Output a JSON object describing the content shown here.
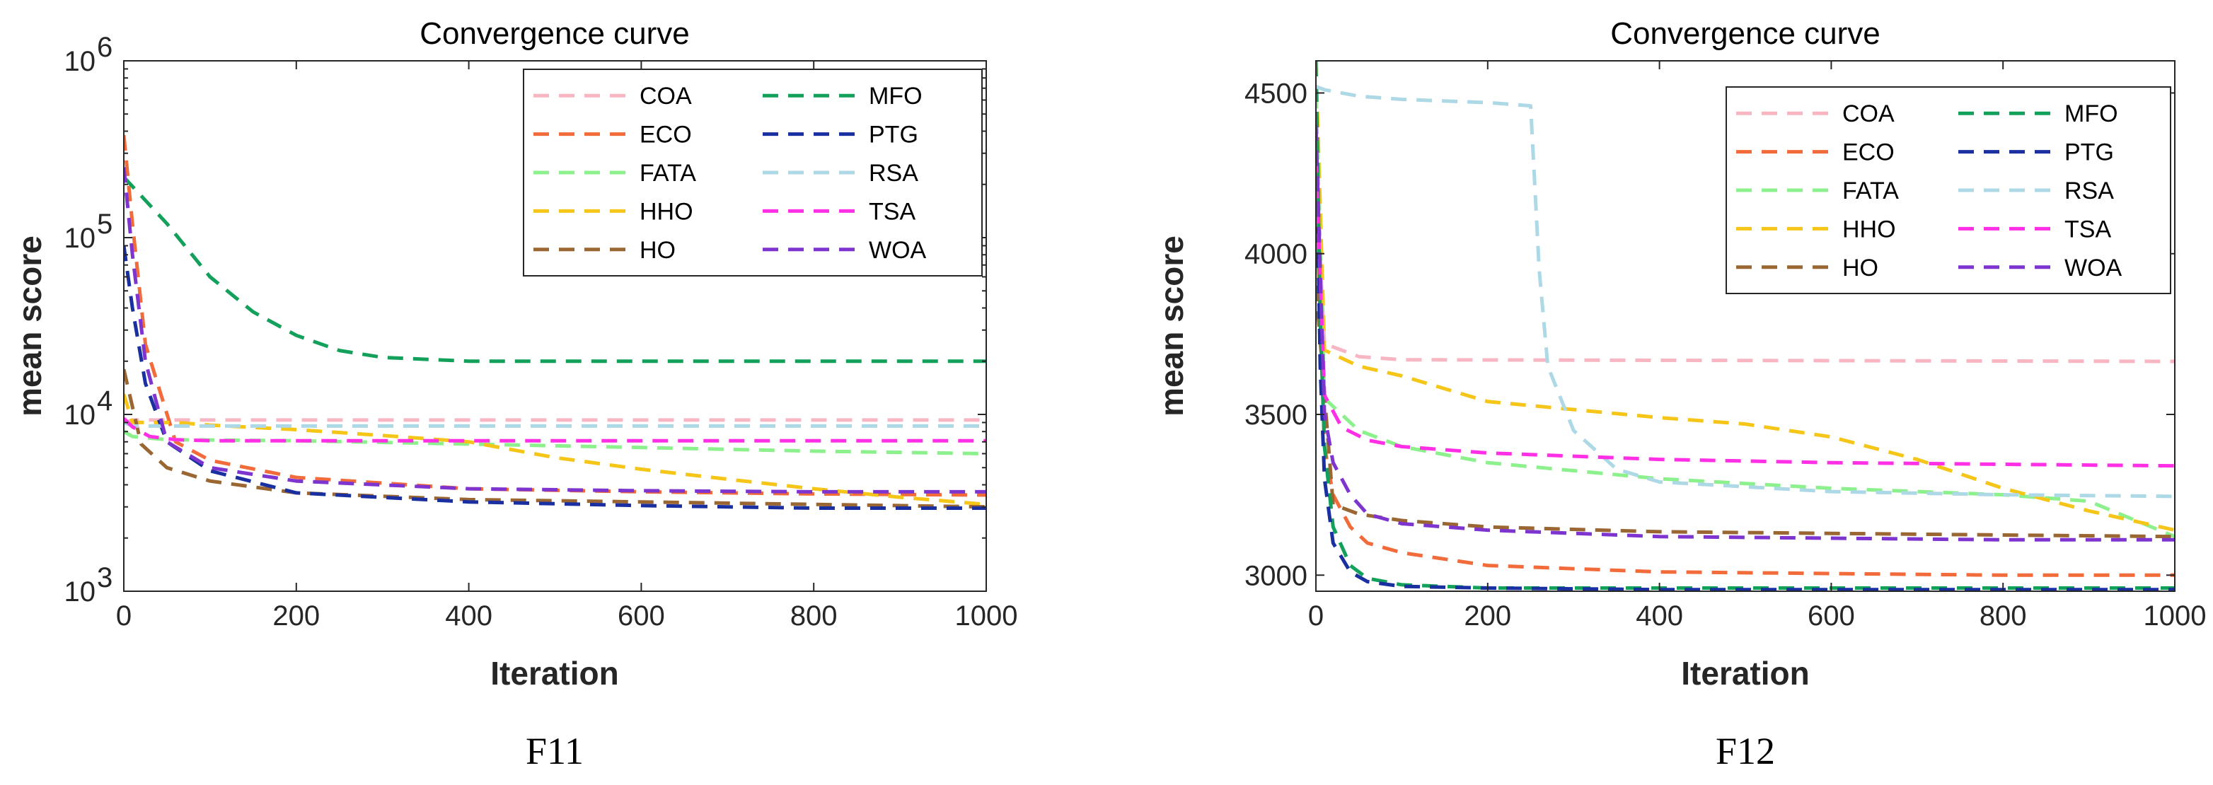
{
  "chart_data": [
    {
      "type": "line",
      "panel": "F11",
      "title": "Convergence curve",
      "xlabel": "Iteration",
      "ylabel": "mean score",
      "yscale": "log",
      "xlim": [
        0,
        1000
      ],
      "ylim": [
        1000,
        1000000
      ],
      "xticks": [
        0,
        200,
        400,
        600,
        800,
        1000
      ],
      "xtick_labels": [
        "0",
        "200",
        "400",
        "600",
        "800",
        "1000"
      ],
      "yticks": [
        1000,
        10000,
        100000,
        1000000
      ],
      "ytick_labels": [
        [
          "10",
          "3"
        ],
        [
          "10",
          "4"
        ],
        [
          "10",
          "5"
        ],
        [
          "10",
          "6"
        ]
      ],
      "grid": false,
      "legend": {
        "position": "top-right",
        "columns": 2
      },
      "series": [
        {
          "name": "COA",
          "color": "#F7B6C2",
          "x": [
            0,
            10,
            50,
            100,
            1000
          ],
          "values": [
            9000,
            9300,
            9300,
            9300,
            9300
          ]
        },
        {
          "name": "ECO",
          "color": "#F26B3A",
          "x": [
            0,
            10,
            25,
            60,
            100,
            200,
            400,
            600,
            800,
            1000
          ],
          "values": [
            380000,
            120000,
            25000,
            7000,
            5500,
            4400,
            3800,
            3650,
            3550,
            3500
          ]
        },
        {
          "name": "FATA",
          "color": "#8CF08C",
          "x": [
            0,
            10,
            50,
            200,
            400,
            600,
            800,
            1000
          ],
          "values": [
            8000,
            7500,
            7200,
            7100,
            6800,
            6500,
            6200,
            6000
          ]
        },
        {
          "name": "HHO",
          "color": "#F5C518",
          "x": [
            0,
            10,
            60,
            100,
            200,
            300,
            400,
            500,
            600,
            700,
            800,
            900,
            1000
          ],
          "values": [
            13000,
            9000,
            9000,
            8700,
            8200,
            7600,
            7000,
            5700,
            4900,
            4300,
            3800,
            3400,
            3100
          ]
        },
        {
          "name": "HO",
          "color": "#9A6632",
          "x": [
            0,
            20,
            50,
            100,
            200,
            400,
            600,
            800,
            1000
          ],
          "values": [
            18000,
            6800,
            5000,
            4200,
            3600,
            3300,
            3200,
            3100,
            3000
          ]
        },
        {
          "name": "MFO",
          "color": "#12A05A",
          "x": [
            0,
            50,
            100,
            150,
            200,
            250,
            300,
            400,
            600,
            800,
            1000
          ],
          "values": [
            220000,
            120000,
            60000,
            38000,
            28000,
            23000,
            21000,
            20000,
            20000,
            20000,
            20000
          ]
        },
        {
          "name": "PTG",
          "color": "#1A2FA0",
          "x": [
            0,
            10,
            25,
            50,
            100,
            200,
            400,
            600,
            800,
            1000
          ],
          "values": [
            90000,
            40000,
            15000,
            7000,
            4800,
            3600,
            3200,
            3050,
            2950,
            2950
          ]
        },
        {
          "name": "RSA",
          "color": "#ADD8E6",
          "x": [
            0,
            10,
            50,
            1000
          ],
          "values": [
            9000,
            8600,
            8600,
            8600
          ]
        },
        {
          "name": "TSA",
          "color": "#FF2FE6",
          "x": [
            0,
            10,
            30,
            60,
            100,
            1000
          ],
          "values": [
            9500,
            8500,
            7500,
            7200,
            7100,
            7100
          ]
        },
        {
          "name": "WOA",
          "color": "#7E35D0",
          "x": [
            0,
            10,
            25,
            50,
            100,
            200,
            400,
            600,
            800,
            1000
          ],
          "values": [
            250000,
            80000,
            20000,
            7000,
            5000,
            4200,
            3800,
            3700,
            3650,
            3650
          ]
        }
      ],
      "caption": "F11"
    },
    {
      "type": "line",
      "panel": "F12",
      "title": "Convergence curve",
      "xlabel": "Iteration",
      "ylabel": "mean score",
      "yscale": "linear",
      "xlim": [
        0,
        1000
      ],
      "ylim": [
        2950,
        4600
      ],
      "xticks": [
        0,
        200,
        400,
        600,
        800,
        1000
      ],
      "xtick_labels": [
        "0",
        "200",
        "400",
        "600",
        "800",
        "1000"
      ],
      "yticks": [
        3000,
        3500,
        4000,
        4500
      ],
      "ytick_labels": [
        "3000",
        "3500",
        "4000",
        "4500"
      ],
      "grid": false,
      "legend": {
        "position": "top-right",
        "columns": 2
      },
      "series": [
        {
          "name": "COA",
          "color": "#F7B6C2",
          "x": [
            0,
            10,
            50,
            100,
            1000
          ],
          "values": [
            4250,
            3720,
            3680,
            3670,
            3665
          ]
        },
        {
          "name": "ECO",
          "color": "#F26B3A",
          "x": [
            0,
            10,
            20,
            40,
            60,
            100,
            200,
            400,
            600,
            800,
            1000
          ],
          "values": [
            4200,
            3400,
            3250,
            3150,
            3100,
            3070,
            3030,
            3010,
            3005,
            3000,
            3000
          ]
        },
        {
          "name": "FATA",
          "color": "#8CF08C",
          "x": [
            0,
            10,
            50,
            100,
            200,
            400,
            600,
            800,
            900,
            1000
          ],
          "values": [
            4500,
            3550,
            3450,
            3400,
            3350,
            3300,
            3270,
            3250,
            3230,
            3120
          ]
        },
        {
          "name": "HHO",
          "color": "#F5C518",
          "x": [
            0,
            10,
            50,
            100,
            200,
            400,
            500,
            600,
            700,
            800,
            900,
            1000
          ],
          "values": [
            4600,
            3700,
            3650,
            3620,
            3540,
            3490,
            3470,
            3430,
            3360,
            3270,
            3200,
            3140
          ]
        },
        {
          "name": "HO",
          "color": "#9A6632",
          "x": [
            0,
            20,
            50,
            100,
            200,
            400,
            600,
            800,
            1000
          ],
          "values": [
            3900,
            3220,
            3190,
            3170,
            3150,
            3135,
            3130,
            3125,
            3120
          ]
        },
        {
          "name": "MFO",
          "color": "#12A05A",
          "x": [
            0,
            5,
            10,
            20,
            40,
            60,
            100,
            200,
            400,
            1000
          ],
          "values": [
            4600,
            3800,
            3400,
            3150,
            3030,
            2990,
            2970,
            2960,
            2960,
            2960
          ]
        },
        {
          "name": "PTG",
          "color": "#1A2FA0",
          "x": [
            0,
            5,
            10,
            20,
            40,
            60,
            100,
            200,
            400,
            1000
          ],
          "values": [
            4400,
            3650,
            3300,
            3100,
            3010,
            2980,
            2965,
            2960,
            2955,
            2955
          ]
        },
        {
          "name": "RSA",
          "color": "#ADD8E6",
          "x": [
            0,
            10,
            50,
            100,
            200,
            250,
            260,
            270,
            300,
            350,
            400,
            600,
            800,
            1000
          ],
          "values": [
            4520,
            4510,
            4490,
            4480,
            4470,
            4460,
            3950,
            3650,
            3450,
            3330,
            3290,
            3260,
            3250,
            3245
          ]
        },
        {
          "name": "TSA",
          "color": "#FF2FE6",
          "x": [
            0,
            10,
            30,
            60,
            100,
            200,
            400,
            600,
            800,
            1000
          ],
          "values": [
            4300,
            3560,
            3460,
            3420,
            3400,
            3380,
            3360,
            3350,
            3345,
            3340
          ]
        },
        {
          "name": "WOA",
          "color": "#7E35D0",
          "x": [
            0,
            10,
            20,
            40,
            60,
            100,
            200,
            400,
            600,
            800,
            1000
          ],
          "values": [
            4400,
            3500,
            3350,
            3250,
            3190,
            3160,
            3140,
            3120,
            3115,
            3110,
            3110
          ]
        }
      ],
      "caption": "F12"
    }
  ]
}
